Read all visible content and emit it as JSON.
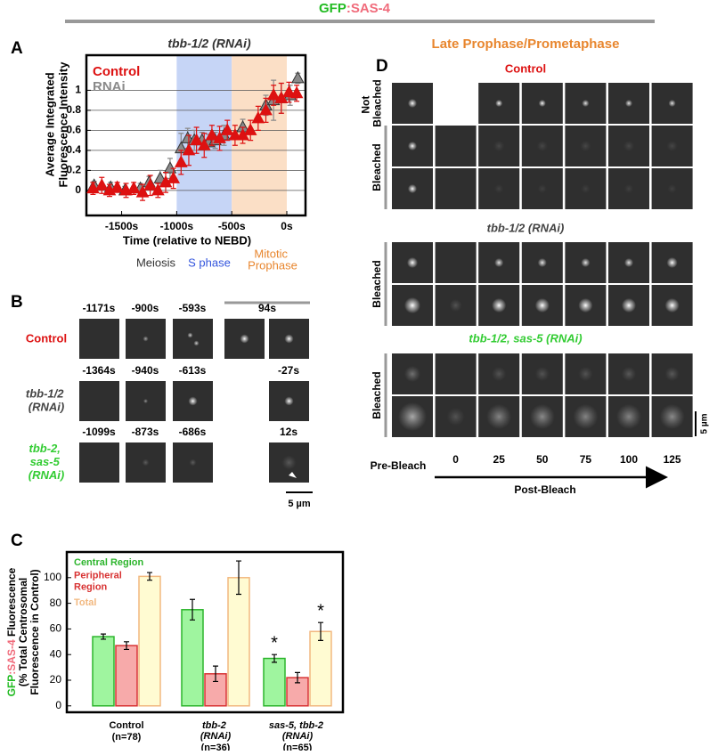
{
  "header": {
    "title": [
      {
        "text": "GFP",
        "color": "#22bb22"
      },
      {
        "text": ":SAS-4",
        "color": "#f06b7b"
      }
    ]
  },
  "panel_labels": [
    "A",
    "B",
    "C",
    "D"
  ],
  "chart_data": [
    {
      "type": "scatter",
      "title": "tbb-1/2 (RNAi)",
      "ylabel": [
        "Average Integrated",
        "Fluorescence Intensity"
      ],
      "xlabel": "Time (relative to NEBD)",
      "xlim": [
        -1820,
        170
      ],
      "ylim": [
        -0.25,
        1.35
      ],
      "xticks": [
        {
          "value": -1500,
          "label": "-1500s"
        },
        {
          "value": -1000,
          "label": "-1000s"
        },
        {
          "value": -500,
          "label": "-500s"
        },
        {
          "value": 0,
          "label": "0s"
        }
      ],
      "yticks": [
        0,
        0.2,
        0.4,
        0.6,
        0.8,
        1
      ],
      "grid": true,
      "shaded_regions": [
        {
          "range": [
            -1000,
            -500
          ],
          "color": "#c6d5f6"
        },
        {
          "range": [
            -500,
            0
          ],
          "color": "#fbdfc6"
        }
      ],
      "phase_labels": [
        {
          "text": "Meiosis",
          "color": "#333333"
        },
        {
          "text": "S phase",
          "color": "#3355dd"
        },
        {
          "text": "Mitotic Prophase",
          "color": "#e8862e"
        }
      ],
      "series": [
        {
          "name": "RNAi",
          "color": "#8a8a8a",
          "x": [
            -1750,
            -1600,
            -1470,
            -1330,
            -1250,
            -1150,
            -1060,
            -960,
            -900,
            -840,
            -770,
            -710,
            -650,
            -570,
            -400,
            -190,
            -120,
            -50,
            30,
            100
          ],
          "values": [
            0.05,
            0.03,
            0.0,
            0.02,
            0.08,
            0.12,
            0.22,
            0.42,
            0.52,
            0.5,
            0.5,
            0.48,
            0.5,
            0.55,
            0.63,
            0.85,
            0.9,
            0.92,
            0.95,
            1.12
          ],
          "errors": [
            0.04,
            0.05,
            0.04,
            0.05,
            0.06,
            0.08,
            0.1,
            0.15,
            0.1,
            0.1,
            0.08,
            0.08,
            0.08,
            0.1,
            0.08,
            0.1,
            0.2,
            0.15,
            0.1,
            0.05
          ]
        },
        {
          "name": "Control",
          "color": "#dd1111",
          "x": [
            -1760,
            -1680,
            -1610,
            -1540,
            -1460,
            -1390,
            -1310,
            -1240,
            -1170,
            -1100,
            -1030,
            -960,
            -890,
            -820,
            -750,
            -680,
            -610,
            -540,
            -470,
            -400,
            -330,
            -260,
            -190,
            -120,
            -50,
            20,
            90
          ],
          "values": [
            0.02,
            0.05,
            0.0,
            0.03,
            0.0,
            0.02,
            -0.02,
            0.05,
            0.0,
            0.08,
            0.12,
            0.28,
            0.4,
            0.5,
            0.45,
            0.55,
            0.52,
            0.6,
            0.55,
            0.55,
            0.6,
            0.72,
            0.8,
            0.95,
            0.92,
            0.98,
            0.97
          ],
          "errors": [
            0.06,
            0.08,
            0.06,
            0.05,
            0.07,
            0.06,
            0.08,
            0.1,
            0.07,
            0.1,
            0.1,
            0.12,
            0.15,
            0.13,
            0.12,
            0.1,
            0.12,
            0.1,
            0.1,
            0.08,
            0.1,
            0.12,
            0.12,
            0.1,
            0.15,
            0.1,
            0.08
          ]
        }
      ]
    },
    {
      "type": "bar",
      "ylabel": [
        [
          {
            "text": "GFP",
            "color": "#22bb22"
          },
          {
            "text": ":SAS-4",
            "color": "#f06b7b"
          },
          {
            "text": " Fluorescence",
            "color": "#000000"
          }
        ],
        [
          {
            "text": "(% Total Centrosomal",
            "color": "#000000"
          }
        ],
        [
          {
            "text": "Fluorescence in Control)",
            "color": "#000000"
          }
        ]
      ],
      "categories": [
        "Control",
        "tbb-2 (RNAi)",
        "sas-5, tbb-2 (RNAi)"
      ],
      "category_counts": [
        "(n=78)",
        "(n=36)",
        "(n=65)"
      ],
      "ylim": [
        -5,
        120
      ],
      "yticks": [
        0,
        20,
        40,
        60,
        80,
        100
      ],
      "series": [
        {
          "name": "Central Region",
          "color": "#9ff59f",
          "edgecolor": "#2db52d",
          "values": [
            54,
            75,
            37
          ],
          "errors": [
            2,
            8,
            3
          ],
          "annotations": [
            null,
            null,
            "*"
          ]
        },
        {
          "name": "Peripheral Region",
          "color": "#f7aaaa",
          "edgecolor": "#d83333",
          "values": [
            47,
            25,
            22
          ],
          "errors": [
            3,
            6,
            4
          ]
        },
        {
          "name": "Total",
          "color": "#fffbd2",
          "edgecolor": "#f2b880",
          "values": [
            101,
            100,
            58
          ],
          "errors": [
            3,
            13,
            7
          ],
          "annotations": [
            null,
            null,
            "*"
          ]
        }
      ]
    }
  ],
  "panel_b": {
    "rows": [
      {
        "label": "Control",
        "color": "#dd1111",
        "italic": false,
        "times": [
          "-1171s",
          "-900s",
          "-593s",
          "94s"
        ]
      },
      {
        "label": "tbb-1/2 (RNAi)",
        "color": "#444444",
        "italic": true,
        "times": [
          "-1364s",
          "-940s",
          "-613s",
          "-27s"
        ]
      },
      {
        "label": "tbb-2, sas-5 (RNAi)",
        "color": "#33cc33",
        "italic": true,
        "times": [
          "-1099s",
          "-873s",
          "-686s",
          "12s"
        ]
      }
    ],
    "scale_bar": "5 µm"
  },
  "panel_d": {
    "title": "Late Prophase/Prometaphase",
    "sections": [
      {
        "title": "Control",
        "color": "#dd1111",
        "italic": false,
        "groups": [
          "Not Bleached",
          "Bleached"
        ]
      },
      {
        "title": "tbb-1/2 (RNAi)",
        "color": "#444444",
        "italic": true,
        "groups": [
          "Bleached"
        ]
      },
      {
        "title": "tbb-1/2, sas-5 (RNAi)",
        "color": "#33cc33",
        "italic": true,
        "groups": [
          "Bleached"
        ]
      }
    ],
    "pre_bleach": "Pre-Bleach",
    "timepoints": [
      0,
      25,
      50,
      75,
      100,
      125
    ],
    "post_bleach": "Post-Bleach",
    "scale_bar": "5 µm"
  }
}
